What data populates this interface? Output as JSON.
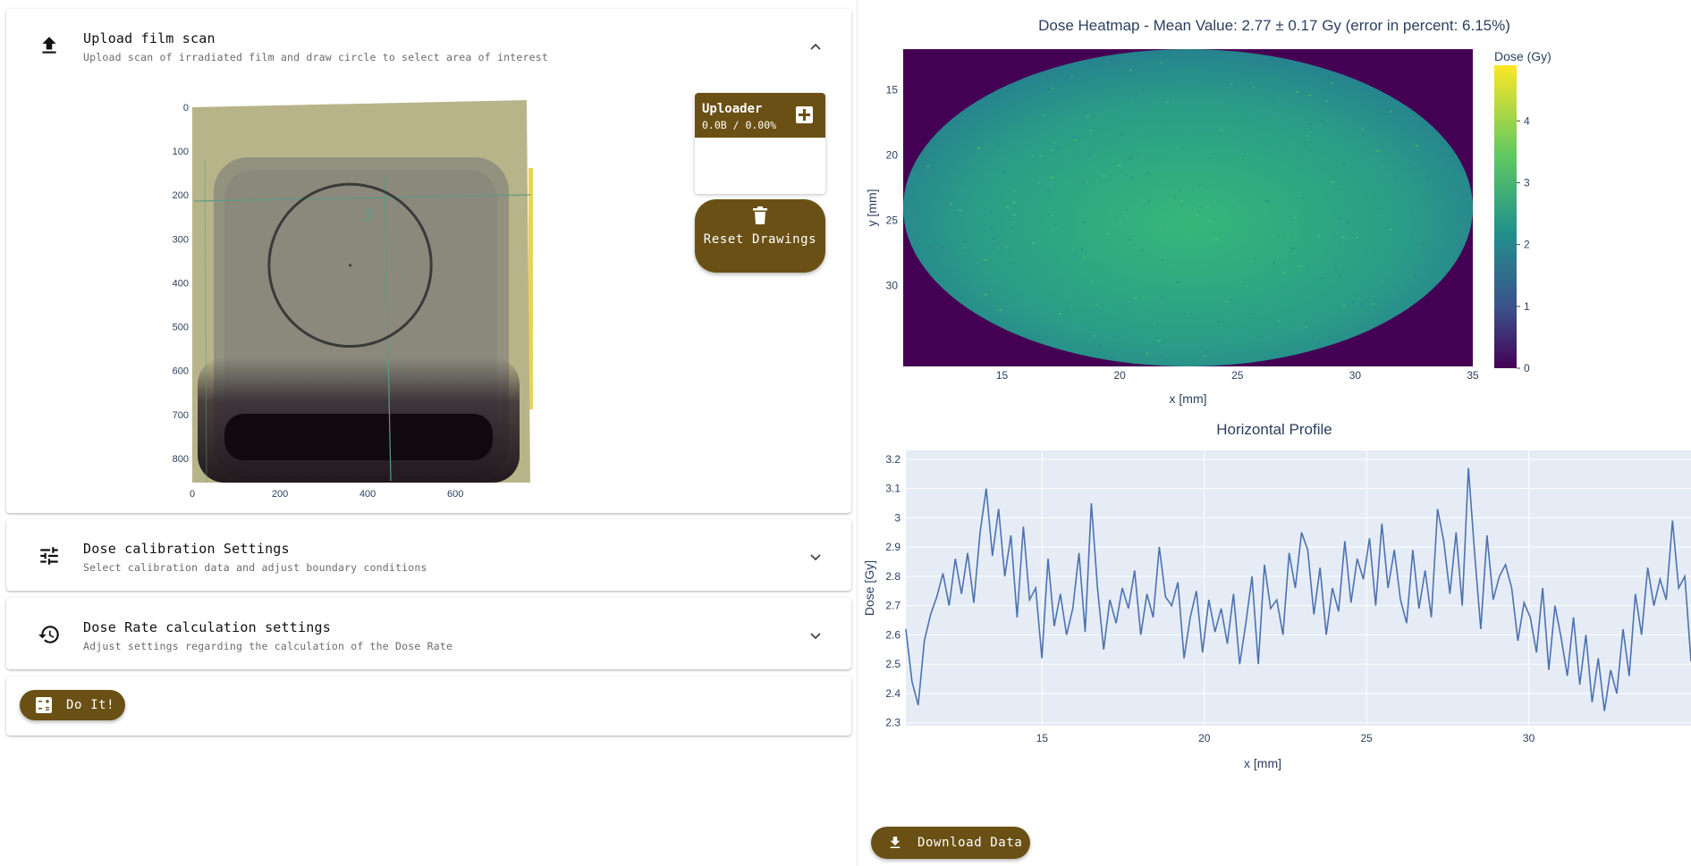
{
  "panels": {
    "upload": {
      "title": "Upload film scan",
      "subtitle": "Upload scan of irradiated film and draw circle to select area of interest",
      "icon": "upload-icon",
      "state": "expanded"
    },
    "calibration": {
      "title": "Dose calibration Settings",
      "subtitle": "Select calibration data and adjust boundary conditions",
      "icon": "tune-icon",
      "state": "collapsed"
    },
    "doserate": {
      "title": "Dose Rate calculation settings",
      "subtitle": "Adjust settings regarding the calculation of the Dose Rate",
      "icon": "history-icon",
      "state": "collapsed"
    }
  },
  "uploader": {
    "title": "Uploader",
    "size": "0.0B / 0.00%",
    "add_icon": "plus-icon"
  },
  "reset_button": {
    "label": "Reset Drawings",
    "icon": "trash-icon"
  },
  "do_it_button": {
    "label": "Do It!",
    "icon": "calculator-icon"
  },
  "download_button": {
    "label": "Download Data",
    "icon": "download-icon"
  },
  "colors": {
    "accent": "#6a5014",
    "plot_bg": "#e5ecf6",
    "line": "#4c72b0",
    "title": "#2a3f5f"
  },
  "film_image": {
    "x_ticks": [
      0,
      200,
      400,
      600
    ],
    "y_ticks": [
      0,
      100,
      200,
      300,
      400,
      500,
      600,
      700,
      800
    ],
    "xlim": [
      0,
      775
    ],
    "ylim": [
      0,
      855
    ],
    "circle": {
      "cx": 360,
      "cy": 360,
      "r": 185
    }
  },
  "chart_data": [
    {
      "type": "heatmap",
      "title": "Dose Heatmap - Mean Value: 2.77 ± 0.17 Gy (error in percent: 6.15%)",
      "xlabel": "x [mm]",
      "ylabel": "y [mm]",
      "x_ticks": [
        15,
        20,
        25,
        30,
        35
      ],
      "y_ticks": [
        15,
        20,
        25,
        30
      ],
      "xlim": [
        10.8,
        35
      ],
      "ylim": [
        36.2,
        11.9
      ],
      "colorbar": {
        "title": "Dose (Gy)",
        "ticks": [
          0,
          1,
          2,
          3,
          4
        ],
        "range": [
          0,
          4.9
        ],
        "colorscale": "viridis"
      },
      "region": "ellipse",
      "mean": 2.77,
      "background_value": 0
    },
    {
      "type": "line",
      "title": "Horizontal Profile",
      "xlabel": "x [mm]",
      "ylabel": "Dose [Gy]",
      "x_ticks": [
        15,
        20,
        25,
        30
      ],
      "y_ticks": [
        2.3,
        2.4,
        2.5,
        2.6,
        2.7,
        2.8,
        2.9,
        3.0,
        3.1,
        3.2
      ],
      "y_tick_labels": [
        "2.3",
        "2.4",
        "2.5",
        "2.6",
        "2.7",
        "2.8",
        "2.9",
        "3",
        "3.1",
        "3.2"
      ],
      "xlim": [
        10.8,
        35
      ],
      "ylim": [
        2.29,
        3.23
      ],
      "x_start": 10.8,
      "x_step": 0.5,
      "series": [
        {
          "values": [
            2.62,
            2.44,
            2.36,
            2.58,
            2.67,
            2.73,
            2.81,
            2.7,
            2.86,
            2.74,
            2.88,
            2.71,
            2.95,
            3.1,
            2.87,
            3.03,
            2.8,
            2.94,
            2.66,
            2.97,
            2.72,
            2.76,
            2.52,
            2.86,
            2.63,
            2.74,
            2.6,
            2.69,
            2.88,
            2.61,
            3.05,
            2.76,
            2.55,
            2.72,
            2.64,
            2.76,
            2.69,
            2.82,
            2.6,
            2.74,
            2.66,
            2.9,
            2.73,
            2.7,
            2.78,
            2.52,
            2.66,
            2.75,
            2.54,
            2.72,
            2.61,
            2.69,
            2.57,
            2.74,
            2.5,
            2.64,
            2.8,
            2.5,
            2.84,
            2.69,
            2.72,
            2.6,
            2.88,
            2.76,
            2.95,
            2.89,
            2.67,
            2.83,
            2.6,
            2.76,
            2.68,
            2.92,
            2.71,
            2.86,
            2.79,
            2.93,
            2.7,
            2.98,
            2.76,
            2.89,
            2.72,
            2.64,
            2.89,
            2.69,
            2.82,
            2.66,
            3.03,
            2.92,
            2.74,
            2.95,
            2.7,
            3.17,
            2.88,
            2.62,
            2.94,
            2.72,
            2.8,
            2.84,
            2.76,
            2.58,
            2.71,
            2.66,
            2.54,
            2.76,
            2.48,
            2.7,
            2.59,
            2.46,
            2.66,
            2.43,
            2.6,
            2.37,
            2.52,
            2.34,
            2.48,
            2.4,
            2.62,
            2.46,
            2.74,
            2.6,
            2.83,
            2.7,
            2.79,
            2.72,
            2.99,
            2.76,
            2.8,
            2.51
          ]
        }
      ]
    }
  ]
}
